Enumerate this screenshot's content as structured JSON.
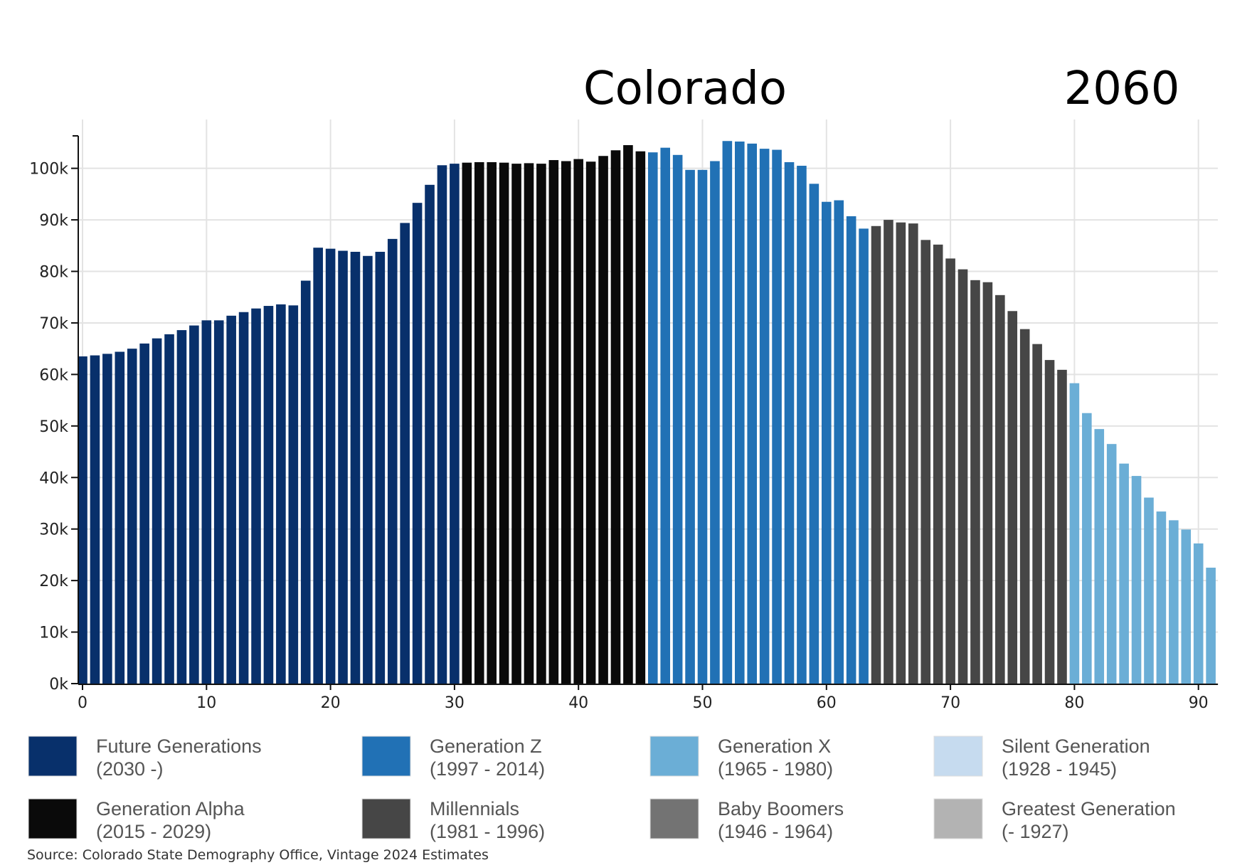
{
  "chart_data": {
    "type": "bar",
    "title": "Colorado",
    "year_label": "2060",
    "xlabel": "",
    "ylabel": "",
    "xlim": [
      0,
      91
    ],
    "ylim": [
      0,
      106300
    ],
    "x_ticks": [
      0,
      10,
      20,
      30,
      40,
      50,
      60,
      70,
      80,
      90
    ],
    "y_ticks": [
      "0k",
      "10k",
      "20k",
      "30k",
      "40k",
      "50k",
      "60k",
      "70k",
      "80k",
      "90k",
      "100k"
    ],
    "y_tick_values": [
      0,
      10000,
      20000,
      30000,
      40000,
      50000,
      60000,
      70000,
      80000,
      90000,
      100000
    ],
    "grid": true,
    "legend_position": "bottom",
    "x": [
      0,
      1,
      2,
      3,
      4,
      5,
      6,
      7,
      8,
      9,
      10,
      11,
      12,
      13,
      14,
      15,
      16,
      17,
      18,
      19,
      20,
      21,
      22,
      23,
      24,
      25,
      26,
      27,
      28,
      29,
      30,
      31,
      32,
      33,
      34,
      35,
      36,
      37,
      38,
      39,
      40,
      41,
      42,
      43,
      44,
      45,
      46,
      47,
      48,
      49,
      50,
      51,
      52,
      53,
      54,
      55,
      56,
      57,
      58,
      59,
      60,
      61,
      62,
      63,
      64,
      65,
      66,
      67,
      68,
      69,
      70,
      71,
      72,
      73,
      74,
      75,
      76,
      77,
      78,
      79,
      80,
      81,
      82,
      83,
      84,
      85,
      86,
      87,
      88,
      89,
      90,
      91
    ],
    "values": [
      63500,
      63700,
      64000,
      64400,
      65000,
      66000,
      67000,
      67800,
      68600,
      69500,
      70500,
      70500,
      71400,
      72100,
      72800,
      73300,
      73600,
      73400,
      78200,
      84600,
      84400,
      84000,
      83800,
      83000,
      83800,
      86300,
      89400,
      93300,
      96800,
      100600,
      100900,
      101100,
      101200,
      101200,
      101100,
      100900,
      101000,
      100900,
      101600,
      101400,
      101800,
      101300,
      102400,
      103500,
      104500,
      103300,
      103100,
      104000,
      102600,
      99700,
      99700,
      101400,
      105300,
      105200,
      104800,
      103800,
      103600,
      101200,
      100500,
      97000,
      93500,
      93800,
      90700,
      88300,
      88800,
      90000,
      89500,
      89300,
      86100,
      85200,
      82500,
      80400,
      78300,
      77900,
      75400,
      72300,
      68800,
      65900,
      62800,
      60900,
      58300,
      52500,
      49400,
      46500,
      42700,
      40300,
      36100,
      33400,
      31700,
      29900,
      27200,
      22500
    ],
    "bar_generation": [
      0,
      0,
      0,
      0,
      0,
      0,
      0,
      0,
      0,
      0,
      0,
      0,
      0,
      0,
      0,
      0,
      0,
      0,
      0,
      0,
      0,
      0,
      0,
      0,
      0,
      0,
      0,
      0,
      0,
      0,
      0,
      4,
      4,
      4,
      4,
      4,
      4,
      4,
      4,
      4,
      4,
      4,
      4,
      4,
      4,
      4,
      1,
      1,
      1,
      1,
      1,
      1,
      1,
      1,
      1,
      1,
      1,
      1,
      1,
      1,
      1,
      1,
      1,
      1,
      5,
      5,
      5,
      5,
      5,
      5,
      5,
      5,
      5,
      5,
      5,
      5,
      5,
      5,
      5,
      5,
      2,
      2,
      2,
      2,
      2,
      2,
      2,
      2,
      2,
      2,
      2,
      2
    ],
    "legend": [
      {
        "name": "Future Generations",
        "range": "(2030 -)",
        "color": "#08306b"
      },
      {
        "name": "Generation Z",
        "range": "(1997 - 2014)",
        "color": "#2171b5"
      },
      {
        "name": "Generation X",
        "range": "(1965 - 1980)",
        "color": "#6baed6"
      },
      {
        "name": "Silent Generation",
        "range": "(1928 - 1945)",
        "color": "#c6dbef"
      },
      {
        "name": "Generation Alpha",
        "range": "(2015 - 2029)",
        "color": "#0a0a0a"
      },
      {
        "name": "Millennials",
        "range": "(1981 - 1996)",
        "color": "#464646"
      },
      {
        "name": "Baby Boomers",
        "range": "(1946 - 1964)",
        "color": "#737373"
      },
      {
        "name": "Greatest Generation",
        "range": "(- 1927)",
        "color": "#b3b3b3"
      }
    ],
    "source": "Source: Colorado State Demography Office, Vintage 2024 Estimates"
  }
}
